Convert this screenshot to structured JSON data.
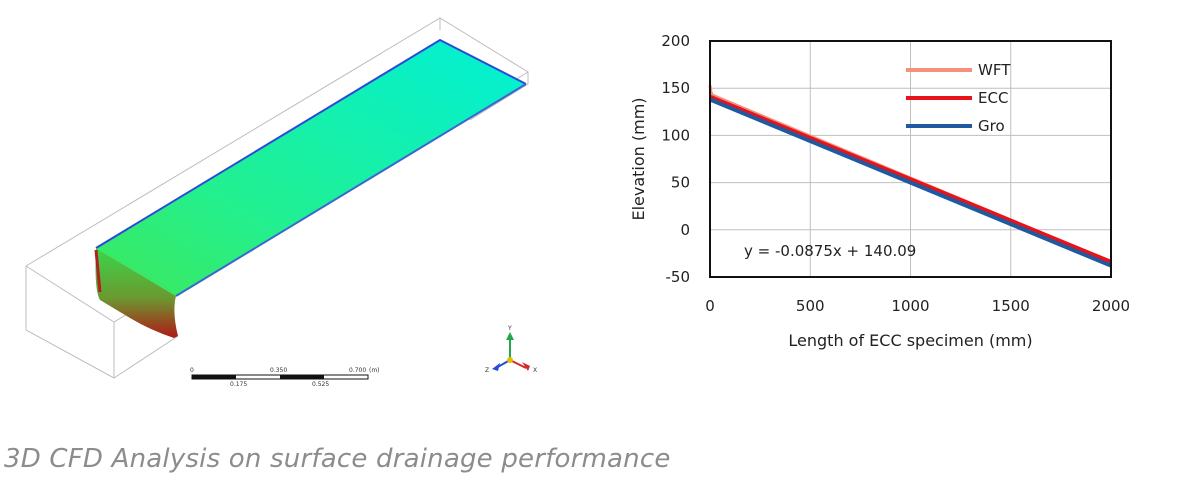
{
  "caption": "3D CFD Analysis on surface drainage performance",
  "cfd": {
    "scale_labels_top": [
      "0",
      "0.350",
      "0.700"
    ],
    "scale_unit": "(m)",
    "scale_labels_bottom": [
      "0.175",
      "0.525"
    ],
    "axes": {
      "y": "Y",
      "x": "X",
      "z": "Z"
    }
  },
  "chart_data": {
    "type": "line",
    "title": "",
    "xlabel": "Length of ECC specimen (mm)",
    "ylabel": "Elevation (mm)",
    "xlim": [
      0,
      2000
    ],
    "ylim": [
      -50,
      200
    ],
    "xticks": [
      0,
      500,
      1000,
      1500,
      2000
    ],
    "yticks": [
      200,
      150,
      100,
      50,
      0,
      -50
    ],
    "grid": "horizontal",
    "legend_position": "top-right",
    "annotation": "y = -0.0875x + 140.09",
    "series": [
      {
        "name": "WFT",
        "color": "#f4917c",
        "x": [
          0,
          5,
          10,
          20,
          2000
        ],
        "y": [
          153,
          146,
          143,
          142,
          -34
        ]
      },
      {
        "name": "ECC",
        "color": "#e8121b",
        "x": [
          0,
          2000
        ],
        "y": [
          141,
          -34
        ]
      },
      {
        "name": "Gro",
        "color": "#1f5aa0",
        "x": [
          0,
          2000
        ],
        "y": [
          138,
          -38
        ]
      }
    ]
  }
}
